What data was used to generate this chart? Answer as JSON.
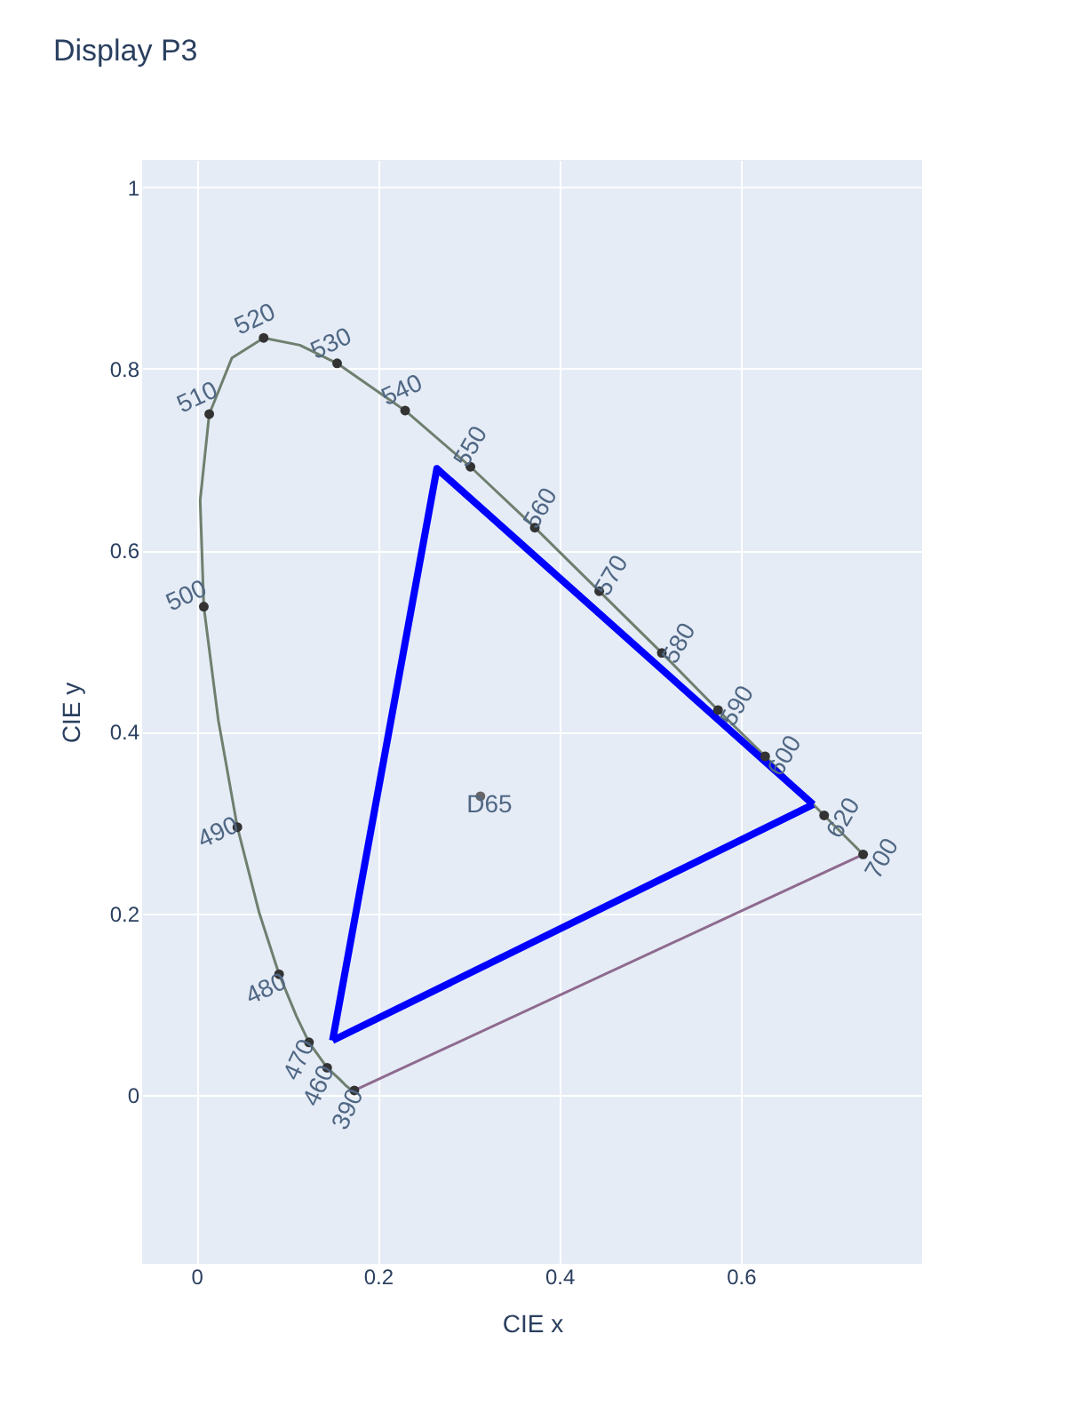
{
  "chart_data": {
    "type": "line",
    "title": "Display P3",
    "xlabel": "CIE x",
    "ylabel": "CIE y",
    "xlim": [
      -0.06,
      0.8
    ],
    "ylim": [
      -0.186,
      1.03
    ],
    "xticks": [
      0,
      0.2,
      0.4,
      0.6
    ],
    "yticks": [
      0,
      0.2,
      0.4,
      0.6,
      0.8,
      1
    ],
    "grid": true,
    "series": [
      {
        "color": "#6f7f6f",
        "marker": "none",
        "x": [
          0.174,
          0.171,
          0.164,
          0.157,
          0.144,
          0.124,
          0.11,
          0.091,
          0.069,
          0.045,
          0.024,
          0.008,
          0.004,
          0.014,
          0.039,
          0.074,
          0.114,
          0.155,
          0.23,
          0.302,
          0.373,
          0.444,
          0.513,
          0.575,
          0.627,
          0.666,
          0.692,
          0.719,
          0.735
        ],
        "values": [
          0.005,
          0.005,
          0.011,
          0.018,
          0.03,
          0.058,
          0.087,
          0.133,
          0.201,
          0.295,
          0.413,
          0.538,
          0.655,
          0.75,
          0.812,
          0.834,
          0.826,
          0.806,
          0.754,
          0.692,
          0.625,
          0.555,
          0.487,
          0.424,
          0.373,
          0.334,
          0.308,
          0.281,
          0.265
        ]
      },
      {
        "color": "#8e6a8e",
        "marker": "none",
        "x": [
          0.174,
          0.735
        ],
        "values": [
          0.005,
          0.265
        ]
      },
      {
        "color": "#0000ff",
        "marker": "none",
        "x": [
          0.15,
          0.265,
          0.68
        ],
        "values": [
          0.06,
          0.69,
          0.32
        ]
      },
      {
        "color": "#0000ff",
        "marker": "none",
        "x": [
          0.15,
          0.68
        ],
        "values": [
          0.06,
          0.32
        ]
      },
      {
        "type": "scatter",
        "color": "#333333",
        "marker": "circle",
        "x": [
          0.174,
          0.144,
          0.124,
          0.091,
          0.045,
          0.008,
          0.014,
          0.074,
          0.155,
          0.23,
          0.302,
          0.373,
          0.444,
          0.513,
          0.575,
          0.627,
          0.692,
          0.735
        ],
        "values": [
          0.005,
          0.03,
          0.058,
          0.133,
          0.295,
          0.538,
          0.75,
          0.834,
          0.806,
          0.754,
          0.692,
          0.625,
          0.555,
          0.487,
          0.424,
          0.373,
          0.308,
          0.265
        ]
      },
      {
        "type": "scatter",
        "color": "#666666",
        "marker": "circle",
        "x": [
          0.313
        ],
        "values": [
          0.329
        ]
      }
    ],
    "annotations": [
      {
        "text": "390",
        "x": 0.174,
        "y": 0.005
      },
      {
        "text": "460",
        "x": 0.144,
        "y": 0.03
      },
      {
        "text": "470",
        "x": 0.124,
        "y": 0.058
      },
      {
        "text": "480",
        "x": 0.091,
        "y": 0.133
      },
      {
        "text": "490",
        "x": 0.045,
        "y": 0.295
      },
      {
        "text": "500",
        "x": 0.008,
        "y": 0.538
      },
      {
        "text": "510",
        "x": 0.014,
        "y": 0.75
      },
      {
        "text": "520",
        "x": 0.074,
        "y": 0.834
      },
      {
        "text": "530",
        "x": 0.155,
        "y": 0.806
      },
      {
        "text": "540",
        "x": 0.23,
        "y": 0.754
      },
      {
        "text": "550",
        "x": 0.302,
        "y": 0.692
      },
      {
        "text": "560",
        "x": 0.373,
        "y": 0.625
      },
      {
        "text": "570",
        "x": 0.444,
        "y": 0.555
      },
      {
        "text": "580",
        "x": 0.513,
        "y": 0.487
      },
      {
        "text": "590",
        "x": 0.575,
        "y": 0.424
      },
      {
        "text": "600",
        "x": 0.627,
        "y": 0.373
      },
      {
        "text": "620",
        "x": 0.692,
        "y": 0.308
      },
      {
        "text": "700",
        "x": 0.735,
        "y": 0.265
      },
      {
        "text": "D65",
        "x": 0.313,
        "y": 0.329
      }
    ]
  }
}
